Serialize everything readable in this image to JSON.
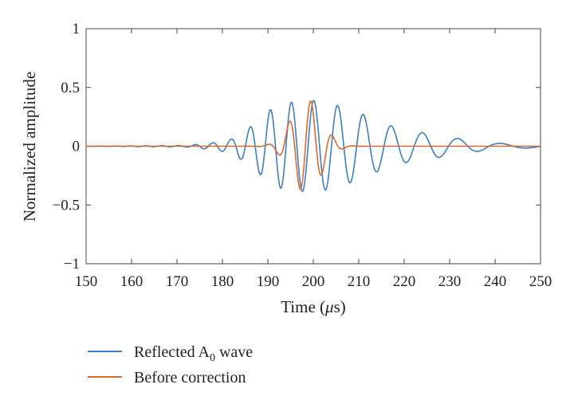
{
  "chart_data": {
    "type": "line",
    "title": "",
    "xlabel": "Time (μs)",
    "xlabel_parts": {
      "prefix": "Time (",
      "symbol": "μ",
      "suffix": "s)"
    },
    "ylabel": "Normalized amplitude",
    "xlim": [
      150,
      250
    ],
    "ylim": [
      -1,
      1
    ],
    "xticks": [
      150,
      160,
      170,
      180,
      190,
      200,
      210,
      220,
      230,
      240,
      250
    ],
    "yticks": [
      1,
      0.5,
      0,
      -0.5,
      -1
    ],
    "ytick_labels": [
      "1",
      "0.5",
      "0",
      "−0.5",
      "−1"
    ],
    "grid": false,
    "legend_placement": "below",
    "series": [
      {
        "name": "Reflected A0 wave",
        "name_parts": {
          "base": "Reflected A",
          "sub": "0",
          "rest": " wave"
        },
        "color": "#3b7fc4",
        "model": {
          "type": "chirped-packet",
          "center": 199,
          "freq_at_center": 0.2,
          "chirp": -0.0025,
          "phase": 0.2,
          "envelope": [
            [
              150,
              0
            ],
            [
              172,
              0.006
            ],
            [
              178,
              0.03
            ],
            [
              182,
              0.06
            ],
            [
              186,
              0.16
            ],
            [
              190,
              0.3
            ],
            [
              193,
              0.36
            ],
            [
              196,
              0.38
            ],
            [
              200,
              0.39
            ],
            [
              203,
              0.37
            ],
            [
              206,
              0.34
            ],
            [
              211,
              0.27
            ],
            [
              215,
              0.2
            ],
            [
              219,
              0.15
            ],
            [
              223,
              0.12
            ],
            [
              227,
              0.1
            ],
            [
              231,
              0.07
            ],
            [
              235,
              0.05
            ],
            [
              239,
              0.03
            ],
            [
              243,
              0.02
            ],
            [
              250,
              0.012
            ]
          ]
        }
      },
      {
        "name": "Before correction",
        "color": "#d9692d",
        "model": {
          "type": "gaussian-packet",
          "center": 198.5,
          "freq": 0.21,
          "sigma": 3.3,
          "amplitude": 0.4,
          "phase": 0.3
        }
      }
    ]
  }
}
